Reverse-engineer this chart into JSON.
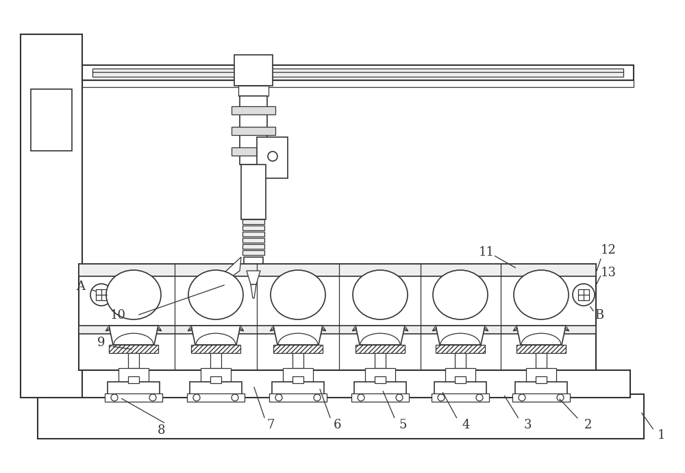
{
  "bg_color": "#ffffff",
  "line_color": "#333333",
  "n_stations": 6,
  "figsize": [
    10.0,
    6.9
  ],
  "dpi": 100
}
